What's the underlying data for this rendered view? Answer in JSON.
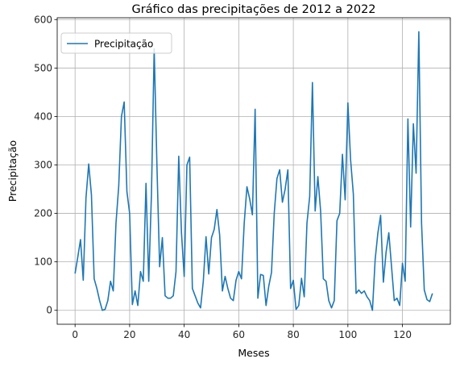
{
  "chart_data": {
    "type": "line",
    "title": "Gráfico das precipitações de 2012 a 2022",
    "xlabel": "Meses",
    "ylabel": "Precipitação",
    "xlim": [
      -6.55,
      137.55
    ],
    "ylim": [
      -28.75,
      603.75
    ],
    "xticks": [
      0,
      20,
      40,
      60,
      80,
      100,
      120
    ],
    "yticks": [
      0,
      100,
      200,
      300,
      400,
      500,
      600
    ],
    "grid": true,
    "legend_position": "top-left",
    "series": [
      {
        "name": "Precipitação",
        "color": "#1f77b4",
        "x": [
          0,
          1,
          2,
          3,
          4,
          5,
          6,
          7,
          8,
          9,
          10,
          11,
          12,
          13,
          14,
          15,
          16,
          17,
          18,
          19,
          20,
          21,
          22,
          23,
          24,
          25,
          26,
          27,
          28,
          29,
          30,
          31,
          32,
          33,
          34,
          35,
          36,
          37,
          38,
          39,
          40,
          41,
          42,
          43,
          44,
          45,
          46,
          47,
          48,
          49,
          50,
          51,
          52,
          53,
          54,
          55,
          56,
          57,
          58,
          59,
          60,
          61,
          62,
          63,
          64,
          65,
          66,
          67,
          68,
          69,
          70,
          71,
          72,
          73,
          74,
          75,
          76,
          77,
          78,
          79,
          80,
          81,
          82,
          83,
          84,
          85,
          86,
          87,
          88,
          89,
          90,
          91,
          92,
          93,
          94,
          95,
          96,
          97,
          98,
          99,
          100,
          101,
          102,
          103,
          104,
          105,
          106,
          107,
          108,
          109,
          110,
          111,
          112,
          113,
          114,
          115,
          116,
          117,
          118,
          119,
          120,
          121,
          122,
          123,
          124,
          125,
          126,
          127,
          128,
          129,
          130,
          131
        ],
        "values": [
          76,
          110,
          146,
          62,
          232,
          302,
          238,
          65,
          45,
          20,
          0,
          2,
          20,
          60,
          40,
          180,
          256,
          400,
          430,
          245,
          200,
          12,
          40,
          10,
          80,
          60,
          262,
          60,
          240,
          540,
          300,
          90,
          150,
          30,
          25,
          25,
          30,
          80,
          318,
          160,
          70,
          300,
          316,
          45,
          30,
          15,
          5,
          60,
          152,
          75,
          150,
          167,
          208,
          155,
          40,
          70,
          45,
          25,
          20,
          62,
          80,
          65,
          180,
          255,
          230,
          197,
          415,
          25,
          74,
          72,
          10,
          50,
          78,
          200,
          272,
          290,
          223,
          250,
          290,
          45,
          62,
          2,
          10,
          66,
          28,
          180,
          235,
          470,
          205,
          276,
          205,
          65,
          60,
          20,
          5,
          20,
          185,
          200,
          322,
          228,
          428,
          310,
          240,
          35,
          42,
          35,
          40,
          28,
          20,
          0,
          105,
          160,
          196,
          58,
          120,
          160,
          90,
          20,
          25,
          10,
          97,
          60,
          395,
          172,
          385,
          283,
          575,
          180,
          42,
          22,
          18,
          35
        ]
      }
    ]
  }
}
